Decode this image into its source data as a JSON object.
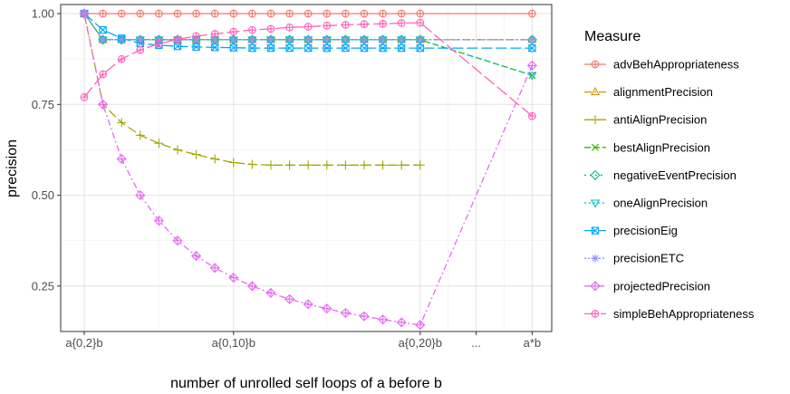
{
  "chart_data": {
    "type": "line",
    "xlabel": "number of unrolled self loops of a before b",
    "ylabel": "precision",
    "ylim": [
      0.125,
      1.025
    ],
    "y_ticks": [
      0.25,
      0.5,
      0.75,
      1.0
    ],
    "y_tick_labels": [
      "0.25",
      "0.50",
      "0.75",
      "1.00"
    ],
    "x_ticks": [
      {
        "x": 0,
        "label": "a{0,2}b"
      },
      {
        "x": 8,
        "label": "a{0,10}b"
      },
      {
        "x": 18,
        "label": "a{0,20}b"
      },
      {
        "x": 21,
        "label": "..."
      },
      {
        "x": 24,
        "label": "a*b"
      }
    ],
    "legend_title": "Measure",
    "legend_position": "right",
    "grid": true,
    "series": [
      {
        "name": "advBehAppropriateness",
        "color": "#F8766D",
        "shape": "circle-plus",
        "dash": "",
        "x": [
          0,
          1,
          2,
          3,
          4,
          5,
          6,
          7,
          8,
          9,
          10,
          11,
          12,
          13,
          14,
          15,
          16,
          17,
          18,
          24
        ],
        "values": [
          1.0,
          1.0,
          1.0,
          1.0,
          1.0,
          1.0,
          1.0,
          1.0,
          1.0,
          1.0,
          1.0,
          1.0,
          1.0,
          1.0,
          1.0,
          1.0,
          1.0,
          1.0,
          1.0,
          1.0
        ]
      },
      {
        "name": "alignmentPrecision",
        "color": "#D89000",
        "shape": "triangle",
        "dash": "8 3 2 3",
        "x": [
          0,
          1,
          2,
          3,
          4,
          5,
          6,
          7,
          8,
          9,
          10,
          11,
          12,
          13,
          14,
          15,
          16,
          17,
          18,
          24
        ],
        "values": [
          1.0,
          0.928,
          0.928,
          0.928,
          0.928,
          0.928,
          0.928,
          0.928,
          0.928,
          0.928,
          0.928,
          0.928,
          0.928,
          0.928,
          0.928,
          0.928,
          0.928,
          0.928,
          0.928,
          0.928
        ]
      },
      {
        "name": "antiAlignPrecision",
        "color": "#A3A500",
        "shape": "plus",
        "dash": "10 4",
        "x": [
          0,
          1,
          2,
          3,
          4,
          5,
          6,
          7,
          8,
          9,
          10,
          11,
          12,
          13,
          14,
          15,
          16,
          17,
          18
        ],
        "values": [
          1.0,
          0.75,
          0.7,
          0.665,
          0.643,
          0.625,
          0.612,
          0.6,
          0.59,
          0.585,
          0.583,
          0.583,
          0.583,
          0.583,
          0.583,
          0.583,
          0.583,
          0.583,
          0.583
        ]
      },
      {
        "name": "bestAlignPrecision",
        "color": "#39B600",
        "shape": "x",
        "dash": "7 3",
        "x": [
          0,
          1,
          2,
          3,
          4,
          5,
          6,
          7,
          8,
          9,
          10,
          11,
          12,
          13,
          14,
          15,
          16,
          17,
          18,
          24
        ],
        "values": [
          1.0,
          0.928,
          0.928,
          0.928,
          0.928,
          0.928,
          0.928,
          0.928,
          0.928,
          0.928,
          0.928,
          0.928,
          0.928,
          0.928,
          0.928,
          0.928,
          0.928,
          0.928,
          0.928,
          0.83
        ]
      },
      {
        "name": "negativeEventPrecision",
        "color": "#00BF7D",
        "shape": "diamond",
        "dash": "2 4",
        "x": [
          0,
          1,
          2,
          3,
          4,
          5,
          6,
          7,
          8,
          9,
          10,
          11,
          12,
          13,
          14,
          15,
          16,
          17,
          18,
          24
        ],
        "values": [
          1.0,
          0.928,
          0.928,
          0.928,
          0.928,
          0.928,
          0.928,
          0.928,
          0.928,
          0.928,
          0.928,
          0.928,
          0.928,
          0.928,
          0.928,
          0.928,
          0.928,
          0.928,
          0.928,
          0.928
        ]
      },
      {
        "name": "oneAlignPrecision",
        "color": "#00BFC4",
        "shape": "triangle-down",
        "dash": "2 3",
        "x": [
          0,
          1,
          2,
          3,
          4,
          5,
          6,
          7,
          8,
          9,
          10,
          11,
          12,
          13,
          14,
          15,
          16,
          17,
          18,
          24
        ],
        "values": [
          1.0,
          0.928,
          0.928,
          0.928,
          0.928,
          0.928,
          0.928,
          0.928,
          0.928,
          0.928,
          0.928,
          0.928,
          0.928,
          0.928,
          0.928,
          0.928,
          0.928,
          0.928,
          0.928,
          0.83
        ]
      },
      {
        "name": "precisionEig",
        "color": "#00A5FF",
        "shape": "square-x",
        "dash": "12 4",
        "x": [
          0,
          1,
          2,
          3,
          4,
          5,
          6,
          7,
          8,
          9,
          10,
          11,
          12,
          13,
          14,
          15,
          16,
          17,
          18,
          24
        ],
        "values": [
          1.0,
          0.955,
          0.932,
          0.918,
          0.913,
          0.91,
          0.908,
          0.907,
          0.906,
          0.905,
          0.905,
          0.905,
          0.905,
          0.905,
          0.905,
          0.905,
          0.905,
          0.905,
          0.905,
          0.905
        ]
      },
      {
        "name": "precisionETC",
        "color": "#9590FF",
        "shape": "asterisk",
        "dash": "2 2",
        "x": [
          0,
          1,
          2,
          3,
          4,
          5,
          6,
          7,
          8,
          9,
          10,
          11,
          12,
          13,
          14,
          15,
          16,
          17,
          18,
          24
        ],
        "values": [
          1.0,
          0.928,
          0.928,
          0.928,
          0.928,
          0.928,
          0.928,
          0.928,
          0.928,
          0.928,
          0.928,
          0.928,
          0.928,
          0.928,
          0.928,
          0.928,
          0.928,
          0.928,
          0.928,
          0.928
        ]
      },
      {
        "name": "projectedPrecision",
        "color": "#E76BF3",
        "shape": "diamond-plus",
        "dash": "7 3 2 3",
        "x": [
          0,
          1,
          2,
          3,
          4,
          5,
          6,
          7,
          8,
          9,
          10,
          11,
          12,
          13,
          14,
          15,
          16,
          17,
          18,
          24
        ],
        "values": [
          1.0,
          0.75,
          0.6,
          0.5,
          0.43,
          0.375,
          0.333,
          0.3,
          0.273,
          0.25,
          0.231,
          0.214,
          0.2,
          0.188,
          0.176,
          0.167,
          0.158,
          0.15,
          0.143,
          0.857
        ]
      },
      {
        "name": "simpleBehAppropriateness",
        "color": "#FF62BC",
        "shape": "circle-plus",
        "dash": "14 4",
        "x": [
          0,
          1,
          2,
          3,
          4,
          5,
          6,
          7,
          8,
          9,
          10,
          11,
          12,
          13,
          14,
          15,
          16,
          17,
          18,
          24
        ],
        "values": [
          0.77,
          0.833,
          0.875,
          0.9,
          0.917,
          0.929,
          0.938,
          0.944,
          0.95,
          0.955,
          0.958,
          0.962,
          0.964,
          0.967,
          0.969,
          0.971,
          0.972,
          0.974,
          0.975,
          0.718
        ]
      }
    ]
  }
}
